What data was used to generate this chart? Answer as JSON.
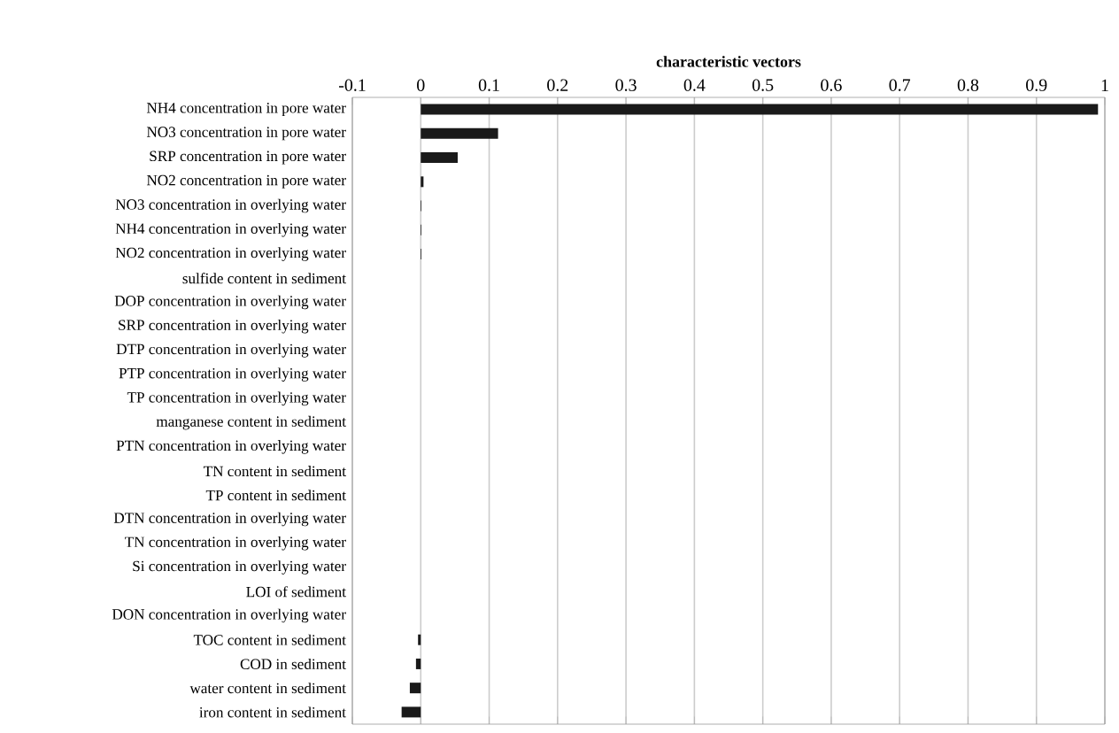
{
  "chart_data": {
    "type": "bar",
    "orientation": "horizontal",
    "xlabel": "characteristic vectors",
    "categories": [
      "NH4 concentration in pore water",
      "NO3 concentration in pore water",
      "SRP concentration in pore water",
      "NO2 concentration in pore water",
      "NO3 concentration in overlying water",
      "NH4 concentration in overlying water",
      "NO2 concentration in overlying water",
      "sulfide content in sediment",
      "DOP concentration in overlying water",
      "SRP concentration in overlying water",
      "DTP concentration in overlying water",
      "PTP concentration in overlying water",
      "TP concentration in overlying water",
      "manganese content in sediment",
      "PTN concentration in overlying water",
      "TN content in sediment",
      "TP content in sediment",
      "DTN concentration in overlying water",
      "TN concentration in overlying water",
      "Si concentration in overlying water",
      "LOI of sediment",
      "DON concentration in overlying water",
      "TOC content in sediment",
      "COD in sediment",
      "water content in sediment",
      "iron content in sediment"
    ],
    "values": [
      0.99,
      0.113,
      0.054,
      0.004,
      0.001,
      0.001,
      0.001,
      0,
      0,
      0,
      0,
      0,
      0,
      0,
      0,
      0,
      0,
      0,
      0,
      0,
      0,
      0,
      -0.004,
      -0.007,
      -0.016,
      -0.028
    ],
    "color": "#1a1a1a",
    "xlim": [
      -0.1,
      1
    ],
    "xticks": [
      -0.1,
      0,
      0.1,
      0.2,
      0.3,
      0.4,
      0.5,
      0.6,
      0.7,
      0.8,
      0.9,
      1
    ],
    "grid": "x"
  }
}
